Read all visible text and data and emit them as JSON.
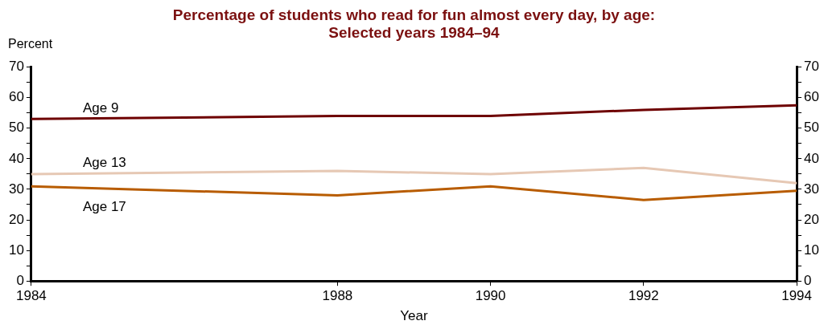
{
  "chart_data": {
    "type": "line",
    "title": "Percentage of students who read for fun almost every day, by age:\nSelected years 1984–94",
    "xlabel": "Year",
    "ylabel": "Percent",
    "x": [
      1984,
      1988,
      1990,
      1992,
      1994
    ],
    "series": [
      {
        "name": "Age 9",
        "color": "#6e0000",
        "values": [
          53,
          54,
          54,
          56,
          57.5
        ]
      },
      {
        "name": "Age 13",
        "color": "#e6c8b4",
        "values": [
          35,
          36,
          35,
          37,
          32
        ]
      },
      {
        "name": "Age 17",
        "color": "#b85c00",
        "values": [
          31,
          28,
          31,
          26.5,
          29.5
        ]
      }
    ],
    "xlim": [
      1984,
      1994
    ],
    "xticks": [
      1984,
      1988,
      1990,
      1992,
      1994
    ],
    "ylim": [
      0,
      70
    ],
    "yticks": [
      0,
      {
        "value": 5,
        "label": null
      },
      10,
      {
        "value": 15,
        "label": null
      },
      20,
      {
        "value": 25,
        "label": null
      },
      30,
      {
        "value": 35,
        "label": null
      },
      40,
      {
        "value": 45,
        "label": null
      },
      50,
      {
        "value": 55,
        "label": null
      },
      60,
      {
        "value": 65,
        "label": null
      },
      70
    ],
    "y2lim": [
      0,
      70
    ],
    "y2ticks": [
      0,
      {
        "value": 5,
        "label": null
      },
      10,
      {
        "value": 15,
        "label": null
      },
      20,
      {
        "value": 25,
        "label": null
      },
      30,
      {
        "value": 35,
        "label": null
      },
      40,
      {
        "value": 45,
        "label": null
      },
      50,
      {
        "value": 55,
        "label": null
      },
      60,
      {
        "value": 65,
        "label": null
      },
      70
    ],
    "grid": false,
    "legend": false,
    "marker": "none",
    "line_style": "solid"
  }
}
